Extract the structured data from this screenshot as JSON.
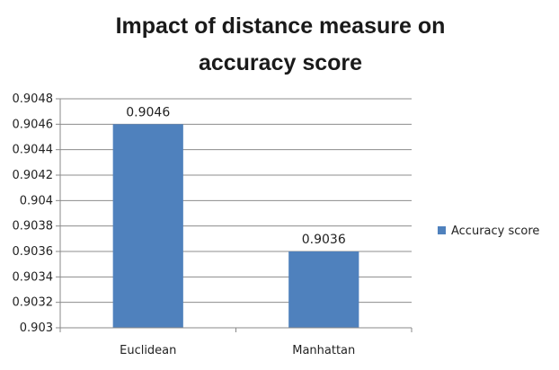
{
  "chart_data": {
    "type": "bar",
    "title_lines": [
      "Impact of distance measure on",
      "accuracy score"
    ],
    "categories": [
      "Euclidean",
      "Manhattan"
    ],
    "series": [
      {
        "name": "Accuracy score",
        "values": [
          0.9046,
          0.9036
        ],
        "color": "#4F81BD"
      }
    ],
    "data_labels": [
      "0.9046",
      "0.9036"
    ],
    "ylim": [
      0.903,
      0.9048
    ],
    "y_ticks": [
      "0.903",
      "0.9032",
      "0.9034",
      "0.9036",
      "0.9038",
      "0.904",
      "0.9042",
      "0.9044",
      "0.9046",
      "0.9048"
    ],
    "y_tick_values": [
      0.903,
      0.9032,
      0.9034,
      0.9036,
      0.9038,
      0.904,
      0.9042,
      0.9044,
      0.9046,
      0.9048
    ],
    "xlabel": "",
    "ylabel": "",
    "grid": true,
    "legend_position": "right"
  }
}
